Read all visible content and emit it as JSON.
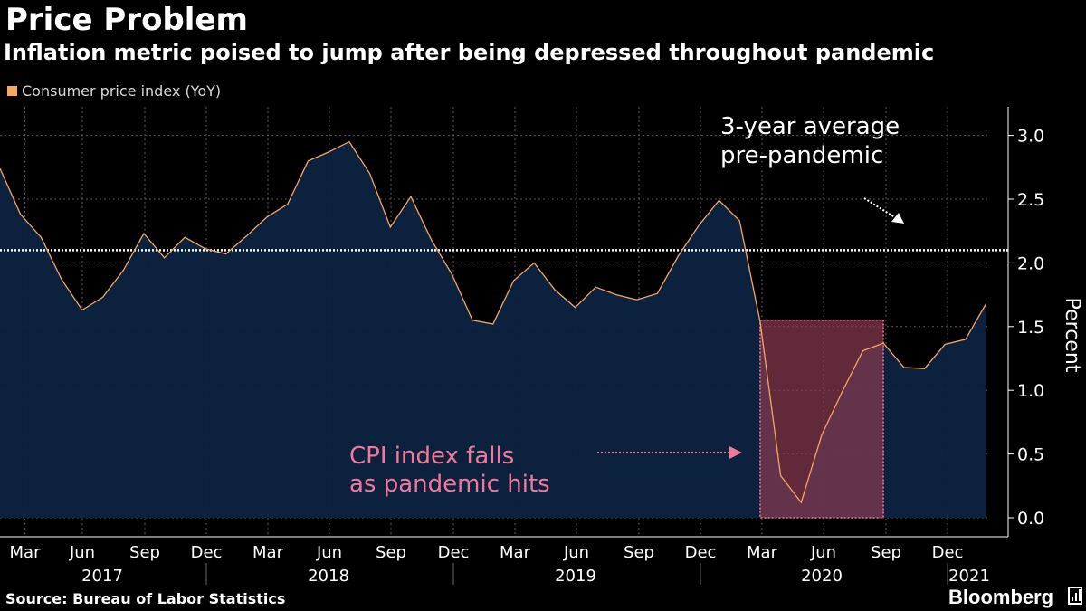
{
  "title": "Price Problem",
  "subtitle": "Inflation metric poised to jump after being depressed throughout pandemic",
  "source": "Source: Bureau of Labor Statistics",
  "brand": "Bloomberg",
  "colors": {
    "series": "#f8a75b",
    "area": "#0c2340",
    "highlight_fill": "#8b3a52",
    "highlight_border": "#f4789a",
    "average_line": "#ffffff"
  },
  "chart_data": {
    "type": "area",
    "series": [
      {
        "name": "Consumer price index (YoY)",
        "x": [
          "2017-02",
          "2017-03",
          "2017-04",
          "2017-05",
          "2017-06",
          "2017-07",
          "2017-08",
          "2017-09",
          "2017-10",
          "2017-11",
          "2017-12",
          "2018-01",
          "2018-02",
          "2018-03",
          "2018-04",
          "2018-05",
          "2018-06",
          "2018-07",
          "2018-08",
          "2018-09",
          "2018-10",
          "2018-11",
          "2018-12",
          "2019-01",
          "2019-02",
          "2019-03",
          "2019-04",
          "2019-05",
          "2019-06",
          "2019-07",
          "2019-08",
          "2019-09",
          "2019-10",
          "2019-11",
          "2019-12",
          "2020-01",
          "2020-02",
          "2020-03",
          "2020-04",
          "2020-05",
          "2020-06",
          "2020-07",
          "2020-08",
          "2020-09",
          "2020-10",
          "2020-11",
          "2020-12",
          "2021-01",
          "2021-02",
          "2021-03"
        ],
        "values": [
          2.74,
          2.38,
          2.2,
          1.87,
          1.63,
          1.73,
          1.94,
          2.23,
          2.04,
          2.2,
          2.11,
          2.07,
          2.21,
          2.36,
          2.46,
          2.8,
          2.87,
          2.95,
          2.7,
          2.28,
          2.52,
          2.18,
          1.91,
          1.55,
          1.52,
          1.86,
          2.0,
          1.79,
          1.65,
          1.81,
          1.75,
          1.71,
          1.76,
          2.05,
          2.29,
          2.49,
          2.33,
          1.54,
          0.33,
          0.12,
          0.65,
          0.99,
          1.31,
          1.37,
          1.18,
          1.17,
          1.36,
          1.4,
          1.68,
          null
        ]
      }
    ],
    "y_axis": {
      "label": "Percent",
      "min": 0,
      "max": 3.2,
      "ticks": [
        "0.0",
        "0.5",
        "1.0",
        "1.5",
        "2.0",
        "2.5",
        "3.0"
      ],
      "position": "right"
    },
    "x_axis": {
      "month_ticks": [
        "Mar",
        "Jun",
        "Sep",
        "Dec",
        "Mar",
        "Jun",
        "Sep",
        "Dec",
        "Mar",
        "Jun",
        "Sep",
        "Dec",
        "Mar",
        "Jun",
        "Sep",
        "Dec"
      ],
      "years": [
        "2017",
        "2018",
        "2019",
        "2020",
        "2021"
      ]
    },
    "reference_line": {
      "value": 2.1,
      "style": "dotted"
    },
    "highlight": {
      "from": "2020-03",
      "to": "2020-09",
      "y_top": 1.55
    },
    "annotations": [
      {
        "text_lines": [
          "3-year average",
          "pre-pandemic"
        ],
        "color": "#ffffff"
      },
      {
        "text_lines": [
          "CPI index falls",
          "as pandemic hits"
        ],
        "color": "#f4789a"
      }
    ],
    "grid": true,
    "legend": "top-left"
  }
}
